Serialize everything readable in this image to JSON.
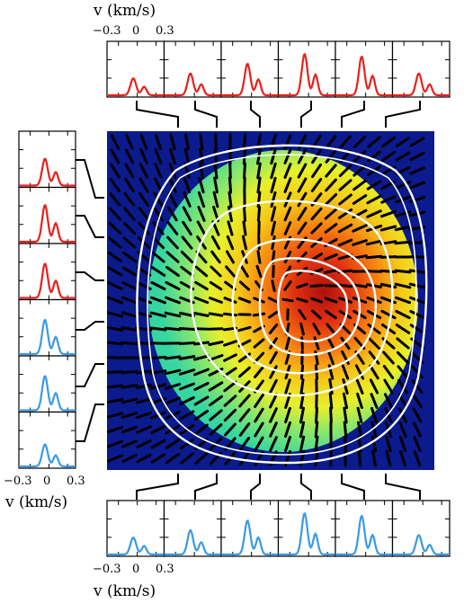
{
  "figure": {
    "top_axis": {
      "title": "v (km/s)",
      "ticks": [
        "−0.3",
        "0",
        "0.3"
      ]
    },
    "left_axis": {
      "title": "v (km/s)",
      "ticks": [
        "−0.3",
        "0",
        "0.3"
      ]
    },
    "bottom_axis": {
      "title": "v (km/s)",
      "ticks": [
        "−0.3",
        "0",
        "0.3"
      ]
    },
    "colors": {
      "red_profile": "#e8201c",
      "blue_profile": "#3a9ae6",
      "background": "#0b1a8c",
      "contour": "#ffffff",
      "vector": "#000000"
    },
    "top_panels": [
      {
        "name": "top-1",
        "peak": 0.35,
        "color": "red"
      },
      {
        "name": "top-2",
        "peak": 0.45,
        "color": "red"
      },
      {
        "name": "top-3",
        "peak": 0.65,
        "color": "red"
      },
      {
        "name": "top-4",
        "peak": 0.85,
        "color": "red"
      },
      {
        "name": "top-5",
        "peak": 0.8,
        "color": "red"
      },
      {
        "name": "top-6",
        "peak": 0.45,
        "color": "red"
      }
    ],
    "left_panels": [
      {
        "name": "left-1",
        "peak": 0.55,
        "color": "red"
      },
      {
        "name": "left-2",
        "peak": 0.75,
        "color": "red"
      },
      {
        "name": "left-3",
        "peak": 0.7,
        "color": "red"
      },
      {
        "name": "left-4",
        "peak": 0.7,
        "color": "blue"
      },
      {
        "name": "left-5",
        "peak": 0.7,
        "color": "blue"
      },
      {
        "name": "left-6",
        "peak": 0.45,
        "color": "blue"
      }
    ],
    "bottom_panels": [
      {
        "name": "bottom-1",
        "peak": 0.35,
        "color": "blue"
      },
      {
        "name": "bottom-2",
        "peak": 0.5,
        "color": "blue"
      },
      {
        "name": "bottom-3",
        "peak": 0.7,
        "color": "blue"
      },
      {
        "name": "bottom-4",
        "peak": 0.85,
        "color": "blue"
      },
      {
        "name": "bottom-5",
        "peak": 0.8,
        "color": "blue"
      },
      {
        "name": "bottom-6",
        "peak": 0.4,
        "color": "blue"
      }
    ]
  }
}
